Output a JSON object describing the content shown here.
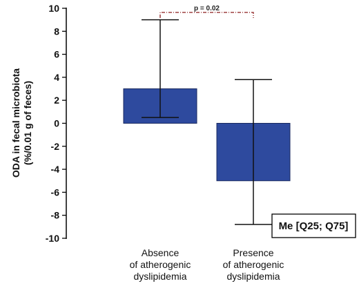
{
  "chart_data": {
    "type": "bar",
    "ylabel": [
      "ODA in fecal microbiota",
      "(%/0.01 g of feces)"
    ],
    "ylim": [
      -10,
      10
    ],
    "yticks": [
      10,
      8,
      6,
      4,
      2,
      0,
      -2,
      -4,
      -6,
      -8,
      -10
    ],
    "grid": false,
    "categories": [
      [
        "Absence",
        "of atherogenic",
        "dyslipidemia"
      ],
      [
        "Presence",
        "of atherogenic",
        "dyslipidemia"
      ]
    ],
    "values": [
      3,
      -5
    ],
    "error_low": [
      0.5,
      -8.8
    ],
    "error_high": [
      9,
      3.8
    ],
    "bar_color": "#2e4a9e",
    "significance": {
      "label": "p = 0.02",
      "color": "#8b1a1a"
    },
    "legend": {
      "text": "Me [Q25; Q75]",
      "placement": "bottom-right"
    }
  }
}
